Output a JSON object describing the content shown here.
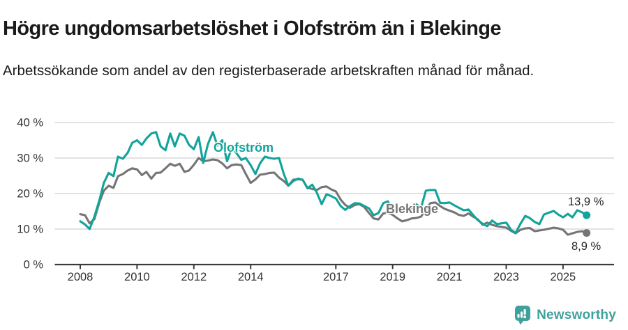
{
  "header": {
    "title": "Högre ungdomsarbetslöshet i Olofström än i Blekinge",
    "subtitle": "Arbetssökande som andel av den registerbaserade arbetskraften månad för månad."
  },
  "chart_data": {
    "type": "line",
    "title": "Högre ungdomsarbetslöshet i Olofström än i Blekinge",
    "unit": "%",
    "ylim": [
      0,
      40
    ],
    "grid": "horizontal",
    "legend_position": "inline-labels",
    "yticks": [
      {
        "value": 0,
        "label": "0 %"
      },
      {
        "value": 10,
        "label": "10 %"
      },
      {
        "value": 20,
        "label": "20 %"
      },
      {
        "value": 30,
        "label": "30 %"
      },
      {
        "value": 40,
        "label": "40 %"
      }
    ],
    "xticks": [
      {
        "value": 2008,
        "label": "2008"
      },
      {
        "value": 2010,
        "label": "2010"
      },
      {
        "value": 2012,
        "label": "2012"
      },
      {
        "value": 2014,
        "label": "2014"
      },
      {
        "value": 2017,
        "label": "2017"
      },
      {
        "value": 2019,
        "label": "2019"
      },
      {
        "value": 2021,
        "label": "2021"
      },
      {
        "value": 2023,
        "label": "2023"
      },
      {
        "value": 2025,
        "label": "2025"
      }
    ],
    "x": [
      2008.0,
      2008.17,
      2008.33,
      2008.5,
      2008.67,
      2008.83,
      2009.0,
      2009.17,
      2009.33,
      2009.5,
      2009.67,
      2009.83,
      2010.0,
      2010.17,
      2010.33,
      2010.5,
      2010.67,
      2010.83,
      2011.0,
      2011.17,
      2011.33,
      2011.5,
      2011.67,
      2011.83,
      2012.0,
      2012.17,
      2012.33,
      2012.5,
      2012.67,
      2012.83,
      2013.0,
      2013.17,
      2013.33,
      2013.5,
      2013.67,
      2013.83,
      2014.0,
      2014.17,
      2014.33,
      2014.5,
      2014.67,
      2014.83,
      2015.0,
      2015.17,
      2015.33,
      2015.5,
      2015.67,
      2015.83,
      2016.0,
      2016.17,
      2016.33,
      2016.5,
      2016.67,
      2016.83,
      2017.0,
      2017.17,
      2017.33,
      2017.5,
      2017.67,
      2017.83,
      2018.0,
      2018.17,
      2018.33,
      2018.5,
      2018.67,
      2018.83,
      2019.0,
      2019.17,
      2019.33,
      2019.5,
      2019.67,
      2019.83,
      2020.0,
      2020.17,
      2020.33,
      2020.5,
      2020.67,
      2020.83,
      2021.0,
      2021.17,
      2021.33,
      2021.5,
      2021.67,
      2021.83,
      2022.0,
      2022.17,
      2022.33,
      2022.5,
      2022.67,
      2022.83,
      2023.0,
      2023.17,
      2023.33,
      2023.5,
      2023.67,
      2023.83,
      2024.0,
      2024.17,
      2024.33,
      2024.5,
      2024.67,
      2024.83,
      2025.0,
      2025.17,
      2025.33,
      2025.5,
      2025.67,
      2025.83
    ],
    "series": [
      {
        "name": "Olofström",
        "color": "#12a39a",
        "end_label": "13,9 %",
        "values": [
          12.2,
          11.3,
          10.0,
          13.5,
          18.0,
          23.0,
          25.8,
          24.9,
          30.4,
          29.8,
          31.5,
          34.3,
          35.0,
          33.7,
          35.5,
          36.9,
          37.3,
          33.3,
          32.2,
          36.9,
          33.3,
          36.9,
          36.3,
          33.7,
          32.5,
          35.9,
          28.6,
          34.0,
          37.3,
          33.5,
          35.0,
          29.1,
          32.7,
          31.4,
          29.5,
          30.0,
          28.0,
          25.5,
          28.5,
          30.4,
          30.0,
          29.8,
          30.0,
          25.5,
          22.2,
          23.5,
          24.2,
          23.9,
          21.5,
          22.5,
          20.3,
          17.0,
          19.8,
          19.3,
          18.6,
          16.5,
          15.4,
          16.5,
          17.3,
          17.2,
          16.5,
          15.8,
          13.9,
          14.5,
          17.3,
          17.8,
          15.5,
          15.0,
          16.0,
          16.3,
          15.8,
          17.0,
          16.0,
          20.8,
          21.0,
          21.0,
          17.4,
          17.3,
          17.5,
          16.7,
          16.0,
          15.3,
          15.5,
          14.0,
          12.5,
          11.5,
          10.8,
          12.4,
          11.4,
          11.6,
          11.8,
          9.8,
          8.9,
          11.5,
          13.7,
          13.1,
          12.0,
          11.4,
          14.1,
          14.6,
          15.1,
          14.1,
          13.3,
          14.3,
          13.3,
          15.3,
          14.7,
          13.9
        ]
      },
      {
        "name": "Blekinge",
        "color": "#757575",
        "end_label": "8,9 %",
        "values": [
          14.2,
          13.9,
          11.6,
          12.8,
          17.5,
          20.8,
          22.2,
          21.6,
          24.9,
          25.5,
          26.5,
          27.1,
          26.8,
          25.2,
          26.1,
          24.2,
          25.8,
          25.9,
          27.1,
          28.4,
          27.8,
          28.4,
          26.1,
          26.5,
          28.1,
          30.0,
          29.1,
          29.3,
          29.6,
          29.4,
          28.5,
          27.1,
          28.0,
          28.2,
          28.0,
          25.5,
          23.0,
          24.0,
          25.3,
          25.5,
          25.8,
          25.9,
          24.5,
          23.5,
          22.2,
          23.9,
          24.0,
          23.9,
          21.6,
          21.3,
          21.0,
          21.8,
          22.0,
          21.2,
          20.6,
          18.3,
          16.8,
          16.0,
          16.8,
          17.0,
          16.2,
          14.5,
          13.0,
          12.7,
          14.4,
          14.6,
          14.0,
          13.0,
          12.2,
          12.5,
          13.0,
          13.1,
          13.5,
          15.5,
          17.3,
          17.5,
          16.5,
          15.7,
          15.2,
          14.7,
          14.0,
          13.7,
          14.4,
          13.5,
          12.7,
          11.2,
          11.8,
          11.2,
          10.8,
          10.6,
          10.4,
          9.5,
          8.8,
          9.8,
          10.2,
          10.3,
          9.4,
          9.6,
          9.8,
          10.1,
          10.4,
          10.2,
          9.8,
          8.4,
          8.8,
          9.2,
          9.4,
          8.9
        ]
      }
    ]
  },
  "annotations": {
    "olofstrom_label": "Olofström",
    "blekinge_label": "Blekinge",
    "olofstrom_end_value": "13,9 %",
    "blekinge_end_value": "8,9 %"
  },
  "footer": {
    "brand": "Newsworthy",
    "brand_color": "#40a09a"
  }
}
